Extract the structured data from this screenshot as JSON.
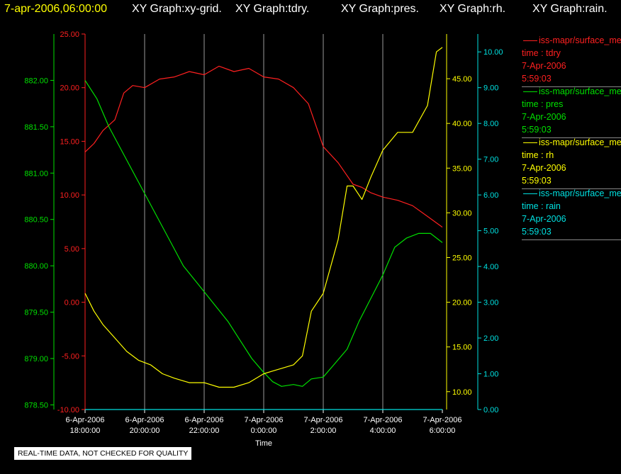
{
  "header": {
    "timestamp": "7-apr-2006,06:00:00",
    "graphs": [
      "XY Graph:xy-grid.",
      "XY Graph:tdry.",
      "XY Graph:pres.",
      "XY Graph:rh.",
      "XY Graph:rain."
    ],
    "colors": {
      "timestamp": "#ffff00",
      "graphs": "#ffffff"
    }
  },
  "notice": "REAL-TIME DATA, NOT CHECKED FOR QUALITY",
  "chart_data": {
    "type": "line",
    "xlabel": "Time",
    "x_ticks": [
      {
        "date": "6-Apr-2006",
        "time": "18:00:00",
        "hour": 18
      },
      {
        "date": "6-Apr-2006",
        "time": "20:00:00",
        "hour": 20
      },
      {
        "date": "6-Apr-2006",
        "time": "22:00:00",
        "hour": 22
      },
      {
        "date": "7-Apr-2006",
        "time": "0:00:00",
        "hour": 24
      },
      {
        "date": "7-Apr-2006",
        "time": "2:00:00",
        "hour": 26
      },
      {
        "date": "7-Apr-2006",
        "time": "4:00:00",
        "hour": 28
      },
      {
        "date": "7-Apr-2006",
        "time": "6:00:00",
        "hour": 30
      }
    ],
    "grid": "vertical",
    "axes": {
      "tdry": {
        "color": "#ff2020",
        "range": [
          -10,
          25
        ],
        "ticks": [
          "-10.00",
          "-5.00",
          "0.00",
          "5.00",
          "10.00",
          "15.00",
          "20.00",
          "25.00"
        ]
      },
      "pres": {
        "color": "#00e000",
        "range": [
          878.45,
          882.5
        ],
        "ticks": [
          "878.50",
          "879.00",
          "879.50",
          "880.00",
          "880.50",
          "881.00",
          "881.50",
          "882.00"
        ]
      },
      "rh": {
        "color": "#ffff00",
        "range": [
          8,
          50
        ],
        "ticks": [
          "10.00",
          "15.00",
          "20.00",
          "25.00",
          "30.00",
          "35.00",
          "40.00",
          "45.00"
        ]
      },
      "rain": {
        "color": "#00e0e0",
        "range": [
          0,
          10.5
        ],
        "ticks": [
          "0.00",
          "1.00",
          "2.00",
          "3.00",
          "4.00",
          "5.00",
          "6.00",
          "7.00",
          "8.00",
          "9.00",
          "10.00"
        ]
      }
    },
    "series": [
      {
        "key": "tdry",
        "color": "#ff2020",
        "x": [
          18,
          18.3,
          18.6,
          19,
          19.3,
          19.6,
          20,
          20.5,
          21,
          21.5,
          22,
          22.5,
          23,
          23.5,
          24,
          24.5,
          25,
          25.5,
          26,
          26.5,
          27,
          27.3,
          27.6,
          28,
          28.5,
          29,
          29.5,
          30
        ],
        "y": [
          14,
          14.8,
          16,
          17,
          19.5,
          20.2,
          20,
          20.8,
          21,
          21.5,
          21.2,
          22,
          21.5,
          21.8,
          21,
          20.8,
          20,
          18.5,
          14.5,
          13,
          11,
          10.7,
          10.2,
          9.8,
          9.5,
          9,
          8,
          7
        ]
      },
      {
        "key": "pres",
        "color": "#00e000",
        "x": [
          18,
          18.4,
          18.8,
          19.3,
          19.8,
          20.3,
          20.8,
          21.3,
          21.8,
          22.3,
          22.8,
          23.2,
          23.6,
          24,
          24.3,
          24.6,
          25,
          25.3,
          25.6,
          26,
          26.4,
          26.8,
          27.2,
          27.6,
          28,
          28.4,
          28.8,
          29.2,
          29.6,
          30
        ],
        "y": [
          882,
          881.8,
          881.5,
          881.2,
          880.9,
          880.6,
          880.3,
          880,
          879.8,
          879.6,
          879.4,
          879.2,
          879,
          878.85,
          878.75,
          878.7,
          878.72,
          878.7,
          878.78,
          878.8,
          878.95,
          879.1,
          879.4,
          879.65,
          879.9,
          880.2,
          880.3,
          880.35,
          880.35,
          880.25
        ]
      },
      {
        "key": "rh",
        "color": "#ffff00",
        "x": [
          18,
          18.3,
          18.6,
          19,
          19.4,
          19.8,
          20.2,
          20.6,
          21,
          21.5,
          22,
          22.5,
          23,
          23.5,
          24,
          24.5,
          25,
          25.3,
          25.6,
          26,
          26.5,
          26.8,
          27,
          27.3,
          27.6,
          28,
          28.5,
          29,
          29.5,
          29.8,
          30
        ],
        "y": [
          21,
          19,
          17.5,
          16,
          14.5,
          13.5,
          13,
          12,
          11.5,
          11,
          11,
          10.5,
          10.5,
          11,
          12,
          12.5,
          13,
          14,
          19,
          21,
          27,
          33,
          33,
          31.5,
          34,
          37,
          39,
          39,
          42,
          48,
          48.5
        ]
      },
      {
        "key": "rain",
        "color": "#00e0e0",
        "x": [
          18,
          30
        ],
        "y": [
          0,
          0
        ]
      }
    ]
  },
  "legend": [
    {
      "key": "tdry",
      "color": "#ff2020",
      "source": "iss-mapr/surface_met",
      "label": "time : tdry",
      "date": "7-Apr-2006",
      "time": "5:59:03"
    },
    {
      "key": "pres",
      "color": "#00e000",
      "source": "iss-mapr/surface_met",
      "label": "time : pres",
      "date": "7-Apr-2006",
      "time": "5:59:03"
    },
    {
      "key": "rh",
      "color": "#ffff00",
      "source": "iss-mapr/surface_met",
      "label": "time : rh",
      "date": "7-Apr-2006",
      "time": "5:59:03"
    },
    {
      "key": "rain",
      "color": "#00e0e0",
      "source": "iss-mapr/surface_met",
      "label": "time : rain",
      "date": "7-Apr-2006",
      "time": "5:59:03"
    }
  ]
}
